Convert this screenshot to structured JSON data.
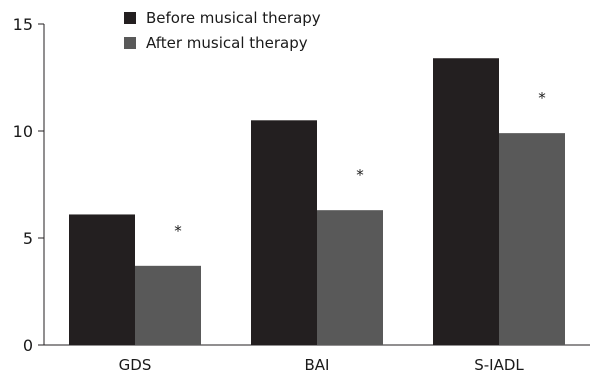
{
  "chart_data": {
    "type": "bar",
    "categories": [
      "GDS",
      "BAI",
      "S-IADL"
    ],
    "series": [
      {
        "name": "Before musical therapy",
        "values": [
          6.1,
          10.5,
          13.4
        ],
        "color": "#231f20"
      },
      {
        "name": "After musical therapy",
        "values": [
          3.7,
          6.3,
          9.9
        ],
        "color": "#595959"
      }
    ],
    "significance": [
      "*",
      "*",
      "*"
    ],
    "yticks": [
      0,
      5,
      10,
      15
    ],
    "ylim": [
      0,
      15
    ],
    "title": "",
    "xlabel": "",
    "ylabel": "",
    "legend": "top-left",
    "grid": false
  }
}
